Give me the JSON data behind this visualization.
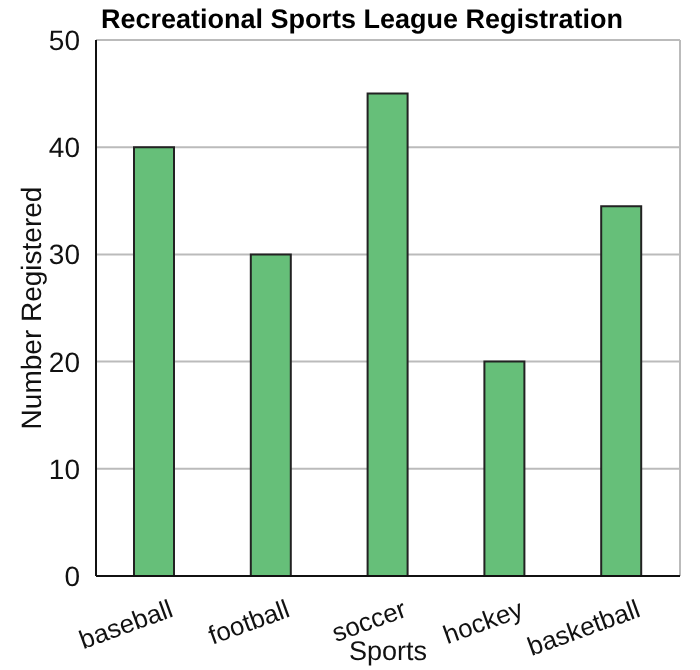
{
  "chart_data": {
    "type": "bar",
    "title": "Recreational Sports League Registration",
    "xlabel": "Sports",
    "ylabel": "Number Registered",
    "categories": [
      "baseball",
      "football",
      "soccer",
      "hockey",
      "basketball"
    ],
    "values": [
      40,
      30,
      45,
      20,
      34.5
    ],
    "color": "#66bf79",
    "ylim": [
      0,
      50
    ],
    "yticks": [
      0,
      10,
      20,
      30,
      40,
      50
    ],
    "grid": "y",
    "legend": false
  }
}
